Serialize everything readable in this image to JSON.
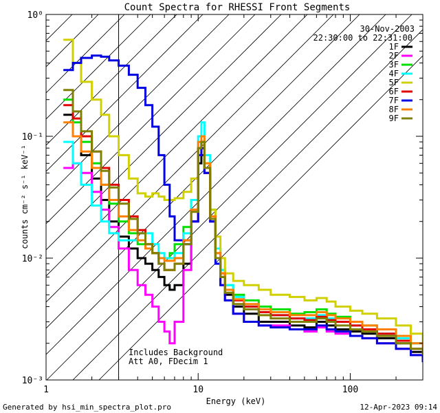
{
  "chart_data": {
    "type": "line",
    "title": "Count Spectra for RHESSI Front Segments",
    "xlabel": "Energy (keV)",
    "ylabel": "counts cm⁻² s⁻¹ keV⁻¹",
    "xscale": "log",
    "yscale": "log",
    "xlim": [
      1,
      300
    ],
    "ylim": [
      0.001,
      1
    ],
    "x_ticks": [
      {
        "value": 1,
        "label": "1"
      },
      {
        "value": 10,
        "label": "10"
      },
      {
        "value": 100,
        "label": "100"
      }
    ],
    "y_ticks": [
      {
        "value": 1,
        "label": "10⁰"
      },
      {
        "value": 0.1,
        "label": "10⁻¹"
      },
      {
        "value": 0.01,
        "label": "10⁻²"
      },
      {
        "value": 0.001,
        "label": "10⁻³"
      }
    ],
    "date": "30-Nov-2003",
    "time_range": "22:30:00 to 22:31:00",
    "annotations": [
      "Includes Background",
      "Att A0, FDecim 1"
    ],
    "shaded_region_keV": [
      1,
      3
    ],
    "series": [
      {
        "name": "1F",
        "color": "#000000",
        "x": [
          1.3,
          1.5,
          1.7,
          2,
          2.3,
          2.6,
          3,
          3.5,
          4,
          4.5,
          5,
          5.5,
          6,
          6.5,
          7,
          8,
          9,
          10,
          10.5,
          11,
          12,
          13,
          14,
          15,
          17,
          20,
          25,
          30,
          40,
          50,
          60,
          70,
          80,
          100,
          120,
          150,
          200,
          250,
          300
        ],
        "values": [
          0.15,
          0.1,
          0.07,
          0.045,
          0.03,
          0.02,
          0.015,
          0.012,
          0.01,
          0.009,
          0.008,
          0.007,
          0.006,
          0.0055,
          0.006,
          0.009,
          0.02,
          0.06,
          0.07,
          0.05,
          0.02,
          0.01,
          0.007,
          0.005,
          0.004,
          0.0035,
          0.003,
          0.003,
          0.0028,
          0.0027,
          0.003,
          0.0028,
          0.0026,
          0.0025,
          0.0024,
          0.0022,
          0.002,
          0.0017,
          0.0015
        ]
      },
      {
        "name": "2F",
        "color": "#ff00ff",
        "x": [
          1.3,
          1.5,
          1.7,
          2,
          2.3,
          2.6,
          3,
          3.5,
          4,
          4.5,
          5,
          5.5,
          6,
          6.5,
          7,
          8,
          9,
          10,
          10.5,
          11,
          12,
          13,
          14,
          15,
          17,
          20,
          25,
          30,
          40,
          50,
          60,
          70,
          80,
          100,
          120,
          150,
          200,
          250,
          300
        ],
        "values": [
          0.055,
          0.06,
          0.05,
          0.035,
          0.025,
          0.018,
          0.012,
          0.008,
          0.006,
          0.005,
          0.004,
          0.003,
          0.0025,
          0.002,
          0.003,
          0.008,
          0.02,
          0.07,
          0.08,
          0.05,
          0.02,
          0.01,
          0.006,
          0.0045,
          0.0035,
          0.003,
          0.0028,
          0.0028,
          0.0026,
          0.0025,
          0.0027,
          0.0025,
          0.0024,
          0.0023,
          0.0022,
          0.002,
          0.0018,
          0.0016,
          0.0014
        ]
      },
      {
        "name": "3F",
        "color": "#00e000",
        "x": [
          1.3,
          1.5,
          1.7,
          2,
          2.3,
          2.6,
          3,
          3.5,
          4,
          4.5,
          5,
          5.5,
          6,
          6.5,
          7,
          8,
          9,
          10,
          10.5,
          11,
          12,
          13,
          14,
          15,
          17,
          20,
          25,
          30,
          40,
          50,
          60,
          70,
          80,
          100,
          120,
          150,
          200,
          250,
          300
        ],
        "values": [
          0.2,
          0.13,
          0.09,
          0.06,
          0.04,
          0.028,
          0.02,
          0.016,
          0.013,
          0.012,
          0.011,
          0.01,
          0.01,
          0.011,
          0.013,
          0.018,
          0.03,
          0.08,
          0.09,
          0.06,
          0.025,
          0.012,
          0.008,
          0.006,
          0.005,
          0.0045,
          0.004,
          0.0038,
          0.0035,
          0.0036,
          0.0038,
          0.0035,
          0.0033,
          0.003,
          0.0028,
          0.0026,
          0.0023,
          0.002,
          0.0018
        ]
      },
      {
        "name": "4F",
        "color": "#00ffff",
        "x": [
          1.3,
          1.5,
          1.7,
          2,
          2.3,
          2.6,
          3,
          3.5,
          4,
          4.5,
          5,
          5.5,
          6,
          6.5,
          7,
          8,
          9,
          10,
          10.5,
          11,
          12,
          13,
          14,
          15,
          17,
          20,
          25,
          30,
          40,
          50,
          60,
          70,
          80,
          100,
          120,
          150,
          200,
          250,
          300
        ],
        "values": [
          0.09,
          0.06,
          0.04,
          0.027,
          0.02,
          0.016,
          0.014,
          0.014,
          0.016,
          0.016,
          0.013,
          0.011,
          0.01,
          0.01,
          0.011,
          0.016,
          0.03,
          0.1,
          0.13,
          0.07,
          0.025,
          0.012,
          0.008,
          0.006,
          0.0048,
          0.004,
          0.0036,
          0.0034,
          0.0032,
          0.0032,
          0.0034,
          0.0032,
          0.003,
          0.0028,
          0.0026,
          0.0024,
          0.0022,
          0.002,
          0.0018
        ]
      },
      {
        "name": "5F",
        "color": "#d0d000",
        "x": [
          1.3,
          1.5,
          1.7,
          2,
          2.3,
          2.6,
          3,
          3.5,
          4,
          4.5,
          5,
          5.5,
          6,
          6.5,
          7,
          8,
          9,
          10,
          10.5,
          11,
          12,
          13,
          14,
          15,
          17,
          20,
          25,
          30,
          40,
          50,
          60,
          70,
          80,
          100,
          120,
          150,
          200,
          250,
          300
        ],
        "values": [
          0.62,
          0.4,
          0.28,
          0.2,
          0.15,
          0.1,
          0.07,
          0.045,
          0.034,
          0.032,
          0.034,
          0.032,
          0.03,
          0.03,
          0.031,
          0.035,
          0.045,
          0.08,
          0.09,
          0.06,
          0.025,
          0.015,
          0.01,
          0.0075,
          0.0065,
          0.006,
          0.0055,
          0.005,
          0.0048,
          0.0045,
          0.0047,
          0.0044,
          0.004,
          0.0037,
          0.0035,
          0.0032,
          0.0028,
          0.0024,
          0.002
        ]
      },
      {
        "name": "6F",
        "color": "#e00000",
        "x": [
          1.3,
          1.5,
          1.7,
          2,
          2.3,
          2.6,
          3,
          3.5,
          4,
          4.5,
          5,
          5.5,
          6,
          6.5,
          7,
          8,
          9,
          10,
          10.5,
          11,
          12,
          13,
          14,
          15,
          17,
          20,
          25,
          30,
          40,
          50,
          60,
          70,
          80,
          100,
          120,
          150,
          200,
          250,
          300
        ],
        "values": [
          0.18,
          0.14,
          0.1,
          0.075,
          0.055,
          0.04,
          0.03,
          0.022,
          0.017,
          0.013,
          0.011,
          0.009,
          0.008,
          0.008,
          0.009,
          0.014,
          0.025,
          0.08,
          0.09,
          0.055,
          0.022,
          0.011,
          0.0075,
          0.0055,
          0.0045,
          0.004,
          0.0036,
          0.0034,
          0.0032,
          0.0031,
          0.0033,
          0.0031,
          0.003,
          0.0028,
          0.0026,
          0.0024,
          0.0021,
          0.0018,
          0.0016
        ]
      },
      {
        "name": "7F",
        "color": "#0000e0",
        "x": [
          1.3,
          1.5,
          1.7,
          2,
          2.3,
          2.6,
          3,
          3.5,
          4,
          4.5,
          5,
          5.5,
          6,
          6.5,
          7,
          8,
          9,
          10,
          10.5,
          11,
          12,
          13,
          14,
          15,
          17,
          20,
          25,
          30,
          40,
          50,
          60,
          70,
          80,
          100,
          120,
          150,
          200,
          250,
          300
        ],
        "values": [
          0.35,
          0.4,
          0.44,
          0.46,
          0.45,
          0.42,
          0.38,
          0.32,
          0.25,
          0.18,
          0.12,
          0.07,
          0.04,
          0.022,
          0.014,
          0.013,
          0.02,
          0.07,
          0.08,
          0.05,
          0.02,
          0.009,
          0.006,
          0.0045,
          0.0035,
          0.003,
          0.0028,
          0.0027,
          0.0026,
          0.0026,
          0.0028,
          0.0026,
          0.0025,
          0.0023,
          0.0022,
          0.002,
          0.0018,
          0.0016,
          0.0014
        ]
      },
      {
        "name": "8F",
        "color": "#ff8000",
        "x": [
          1.3,
          1.5,
          1.7,
          2,
          2.3,
          2.6,
          3,
          3.5,
          4,
          4.5,
          5,
          5.5,
          6,
          6.5,
          7,
          8,
          9,
          10,
          10.5,
          11,
          12,
          13,
          14,
          15,
          17,
          20,
          25,
          30,
          40,
          50,
          60,
          70,
          80,
          100,
          120,
          150,
          200,
          250,
          300
        ],
        "values": [
          0.13,
          0.1,
          0.075,
          0.055,
          0.04,
          0.03,
          0.022,
          0.017,
          0.014,
          0.012,
          0.011,
          0.01,
          0.0095,
          0.0095,
          0.01,
          0.014,
          0.025,
          0.09,
          0.1,
          0.06,
          0.022,
          0.011,
          0.0075,
          0.0055,
          0.0046,
          0.0042,
          0.0038,
          0.0036,
          0.0034,
          0.0034,
          0.0036,
          0.0034,
          0.0032,
          0.003,
          0.0028,
          0.0026,
          0.0023,
          0.002,
          0.0018
        ]
      },
      {
        "name": "9F",
        "color": "#808000",
        "x": [
          1.3,
          1.5,
          1.7,
          2,
          2.3,
          2.6,
          3,
          3.5,
          4,
          4.5,
          5,
          5.5,
          6,
          6.5,
          7,
          8,
          9,
          10,
          10.5,
          11,
          12,
          13,
          14,
          15,
          17,
          20,
          25,
          30,
          40,
          50,
          60,
          70,
          80,
          100,
          120,
          150,
          200,
          250,
          300
        ],
        "values": [
          0.24,
          0.16,
          0.11,
          0.075,
          0.052,
          0.038,
          0.028,
          0.021,
          0.016,
          0.013,
          0.011,
          0.009,
          0.008,
          0.008,
          0.009,
          0.013,
          0.024,
          0.08,
          0.09,
          0.055,
          0.021,
          0.01,
          0.007,
          0.0052,
          0.0042,
          0.0038,
          0.0034,
          0.0032,
          0.003,
          0.003,
          0.0032,
          0.003,
          0.0028,
          0.0026,
          0.0025,
          0.0023,
          0.002,
          0.0018,
          0.0016
        ]
      }
    ]
  },
  "footer": {
    "generated_by": "Generated by hsi_min_spectra_plot.pro",
    "timestamp": "12-Apr-2023 09:14"
  }
}
